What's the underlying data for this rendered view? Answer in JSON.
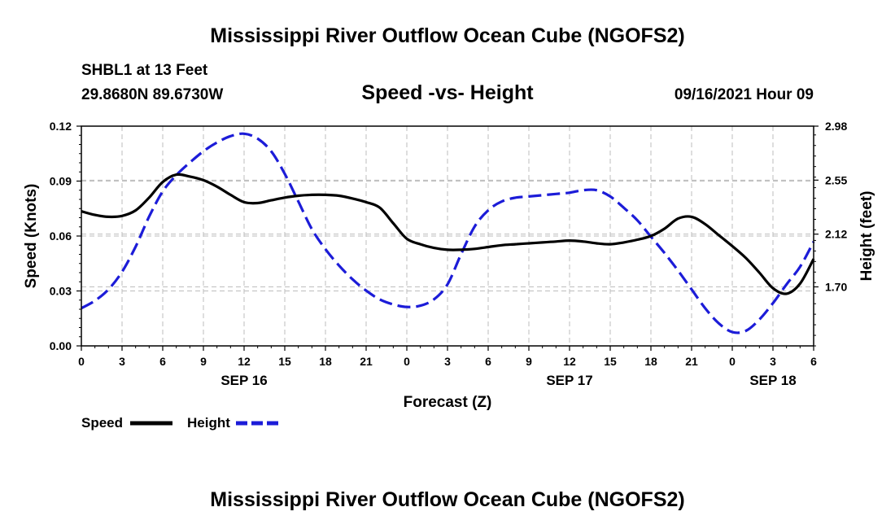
{
  "header": {
    "title": "Mississippi River Outflow Ocean Cube (NGOFS2)",
    "station": "SHBL1 at 13 Feet",
    "coords": "29.8680N  89.6730W",
    "subtitle": "Speed -vs- Height",
    "datetime": "09/16/2021 Hour 09"
  },
  "footer": {
    "title": "Mississippi River Outflow Ocean Cube (NGOFS2)"
  },
  "chart_data": {
    "type": "line",
    "title": "Speed -vs- Height",
    "xlabel": "Forecast (Z)",
    "ylabel": "Speed (Knots)",
    "y2label": "Height (feet)",
    "xlim": [
      0,
      54
    ],
    "ylim": [
      0,
      0.12
    ],
    "y2lim": [
      1.23,
      2.98
    ],
    "x_ticks": [
      0,
      3,
      6,
      9,
      12,
      15,
      18,
      21,
      24,
      27,
      30,
      33,
      36,
      39,
      42,
      45,
      48,
      51,
      54
    ],
    "x_tick_labels": [
      "0",
      "3",
      "6",
      "9",
      "12",
      "15",
      "18",
      "21",
      "0",
      "3",
      "6",
      "9",
      "12",
      "15",
      "18",
      "21",
      "0",
      "3",
      "6"
    ],
    "date_labels": [
      {
        "x": 12,
        "label": "SEP 16"
      },
      {
        "x": 36,
        "label": "SEP 17"
      },
      {
        "x": 51,
        "label": "SEP 18"
      }
    ],
    "y_ticks": [
      "0.00",
      "0.03",
      "0.06",
      "0.09",
      "0.12"
    ],
    "y_tick_values": [
      0,
      0.03,
      0.06,
      0.09,
      0.12
    ],
    "y2_ticks": [
      "1.70",
      "2.12",
      "2.55",
      "2.98"
    ],
    "y2_tick_values": [
      1.7,
      2.12,
      2.55,
      2.98
    ],
    "grid": true,
    "series": [
      {
        "name": "Speed",
        "axis": "left",
        "color": "#000000",
        "dash": "solid",
        "x": [
          0,
          1,
          2,
          3,
          4,
          5,
          6,
          7,
          8,
          9,
          10,
          11,
          12,
          13,
          14,
          15,
          16,
          17,
          18,
          19,
          20,
          21,
          22,
          23,
          24,
          25,
          26,
          27,
          28,
          29,
          30,
          31,
          32,
          33,
          34,
          35,
          36,
          37,
          38,
          39,
          40,
          41,
          42,
          43,
          44,
          45,
          46,
          47,
          48,
          49,
          50,
          51,
          52,
          53,
          54
        ],
        "values": [
          0.0735,
          0.0715,
          0.0705,
          0.071,
          0.074,
          0.081,
          0.0895,
          0.0935,
          0.0925,
          0.0905,
          0.087,
          0.0825,
          0.0785,
          0.078,
          0.0795,
          0.081,
          0.082,
          0.0825,
          0.0825,
          0.082,
          0.0805,
          0.0785,
          0.0755,
          0.067,
          0.0585,
          0.0555,
          0.0535,
          0.0525,
          0.0525,
          0.053,
          0.054,
          0.055,
          0.0555,
          0.056,
          0.0565,
          0.057,
          0.0575,
          0.057,
          0.056,
          0.0555,
          0.0565,
          0.058,
          0.06,
          0.064,
          0.0695,
          0.0705,
          0.0665,
          0.0605,
          0.0545,
          0.048,
          0.04,
          0.0315,
          0.0285,
          0.034,
          0.0475
        ]
      },
      {
        "name": "Height",
        "axis": "right",
        "color": "#1c1cd8",
        "dash": "dashed",
        "x": [
          0,
          1,
          2,
          3,
          4,
          5,
          6,
          7,
          8,
          9,
          10,
          11,
          12,
          13,
          14,
          15,
          16,
          17,
          18,
          19,
          20,
          21,
          22,
          23,
          24,
          25,
          26,
          27,
          28,
          29,
          30,
          31,
          32,
          33,
          34,
          35,
          36,
          37,
          38,
          39,
          40,
          41,
          42,
          43,
          44,
          45,
          46,
          47,
          48,
          49,
          50,
          51,
          52,
          53,
          54
        ],
        "values": [
          1.53,
          1.59,
          1.68,
          1.82,
          2.02,
          2.26,
          2.46,
          2.59,
          2.69,
          2.78,
          2.85,
          2.9,
          2.92,
          2.88,
          2.78,
          2.6,
          2.38,
          2.16,
          2.0,
          1.87,
          1.76,
          1.67,
          1.6,
          1.56,
          1.54,
          1.55,
          1.6,
          1.72,
          1.96,
          2.18,
          2.31,
          2.38,
          2.41,
          2.42,
          2.43,
          2.44,
          2.45,
          2.47,
          2.47,
          2.42,
          2.33,
          2.23,
          2.1,
          1.97,
          1.83,
          1.68,
          1.53,
          1.41,
          1.34,
          1.35,
          1.44,
          1.57,
          1.72,
          1.86,
          2.06
        ]
      }
    ]
  }
}
